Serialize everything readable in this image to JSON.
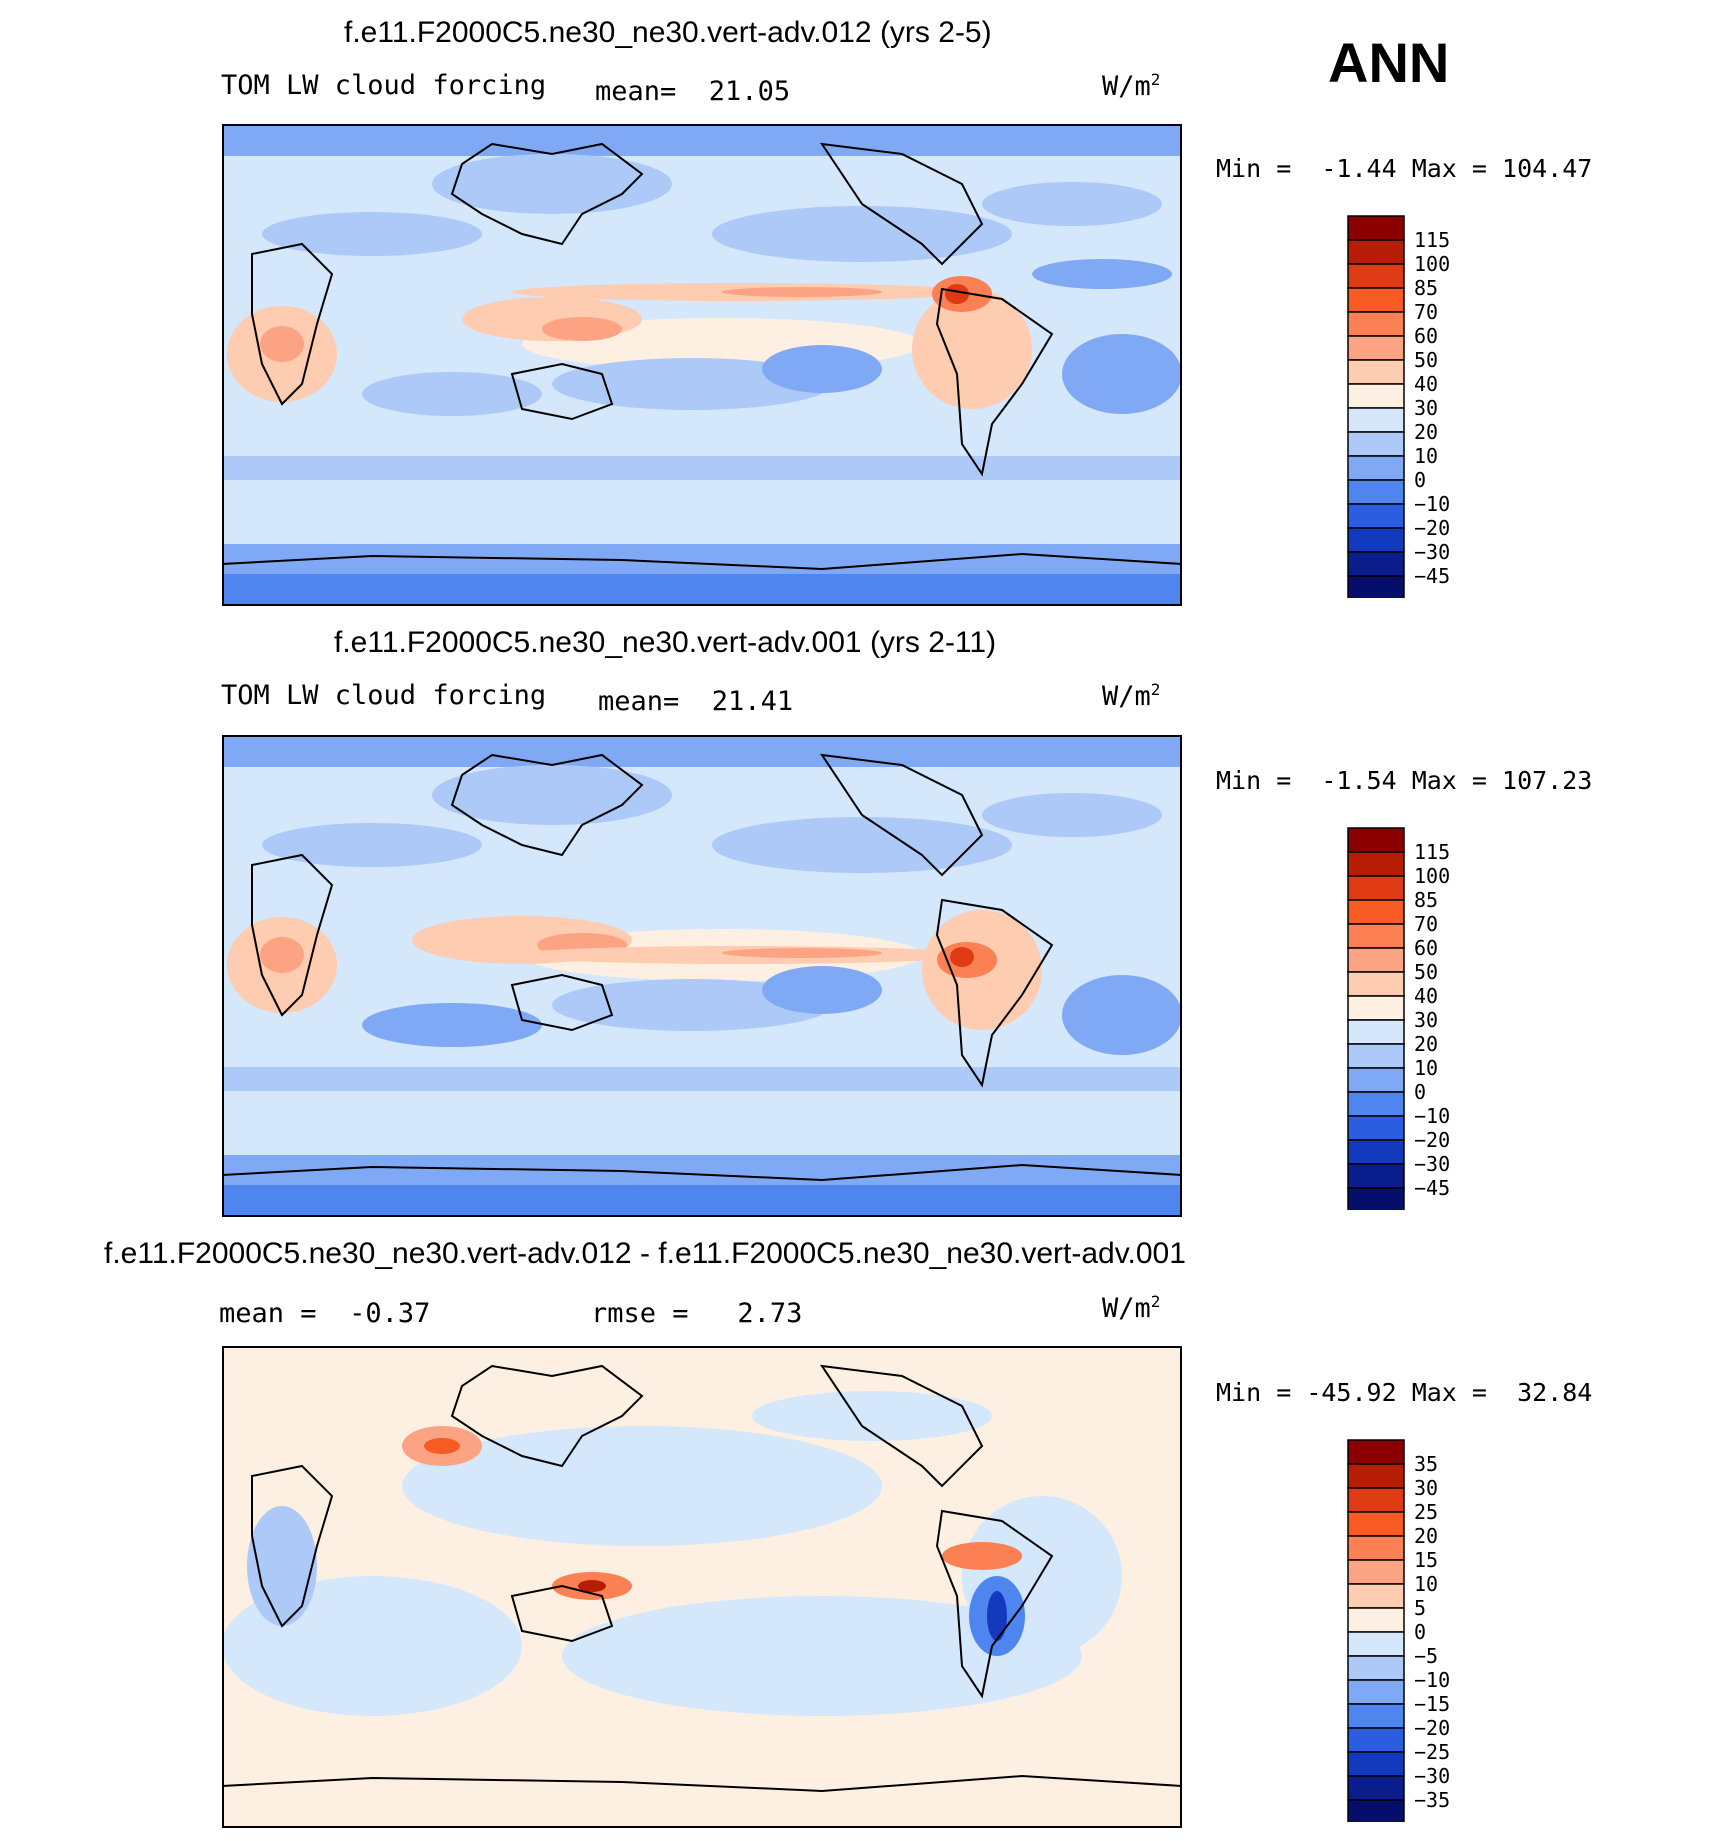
{
  "season": "ANN",
  "chart_data": [
    {
      "type": "heatmap",
      "title": "f.e11.F2000C5.ne30_ne30.vert-adv.012 (yrs 2-5)",
      "variable": "TOM LW cloud forcing",
      "stat_label": "mean=",
      "stat_value": "21.05",
      "units_base": "W/m",
      "units_exp": "2",
      "min_label": "Min =",
      "min": "-1.44",
      "max_label": "Max =",
      "max": "104.47",
      "colorbar_levels": [
        "115",
        "100",
        "85",
        "70",
        "60",
        "50",
        "40",
        "30",
        "20",
        "10",
        "0",
        "-10",
        "-20",
        "-30",
        "-45"
      ],
      "colorbar_colors": [
        "#8b0000",
        "#b71c04",
        "#de3b14",
        "#f75a22",
        "#fb8054",
        "#fca384",
        "#fdccb1",
        "#fdf0e2",
        "#d5e7fb",
        "#acc9f7",
        "#7fa9f4",
        "#4f85ef",
        "#2a5ddf",
        "#1339bd",
        "#0a1d8c",
        "#050f6b"
      ]
    },
    {
      "type": "heatmap",
      "title": "f.e11.F2000C5.ne30_ne30.vert-adv.001 (yrs 2-11)",
      "variable": "TOM LW cloud forcing",
      "stat_label": "mean=",
      "stat_value": "21.41",
      "units_base": "W/m",
      "units_exp": "2",
      "min_label": "Min =",
      "min": "-1.54",
      "max_label": "Max =",
      "max": "107.23",
      "colorbar_levels": [
        "115",
        "100",
        "85",
        "70",
        "60",
        "50",
        "40",
        "30",
        "20",
        "10",
        "0",
        "-10",
        "-20",
        "-30",
        "-45"
      ],
      "colorbar_colors": [
        "#8b0000",
        "#b71c04",
        "#de3b14",
        "#f75a22",
        "#fb8054",
        "#fca384",
        "#fdccb1",
        "#fdf0e2",
        "#d5e7fb",
        "#acc9f7",
        "#7fa9f4",
        "#4f85ef",
        "#2a5ddf",
        "#1339bd",
        "#0a1d8c",
        "#050f6b"
      ]
    },
    {
      "type": "heatmap",
      "title": "f.e11.F2000C5.ne30_ne30.vert-adv.012 - f.e11.F2000C5.ne30_ne30.vert-adv.001",
      "variable": "",
      "stat_label": "mean =",
      "stat_value": "-0.37",
      "rmse_label": "rmse =",
      "rmse_value": "2.73",
      "units_base": "W/m",
      "units_exp": "2",
      "min_label": "Min =",
      "min": "-45.92",
      "max_label": "Max =",
      "max": "32.84",
      "colorbar_levels": [
        "35",
        "30",
        "25",
        "20",
        "15",
        "10",
        "5",
        "0",
        "-5",
        "-10",
        "-15",
        "-20",
        "-25",
        "-30",
        "-35"
      ],
      "colorbar_colors": [
        "#8b0000",
        "#b71c04",
        "#de3b14",
        "#f75a22",
        "#fb8054",
        "#fca384",
        "#fdccb1",
        "#fdf0e2",
        "#d5e7fb",
        "#acc9f7",
        "#7fa9f4",
        "#4f85ef",
        "#2a5ddf",
        "#1339bd",
        "#0a1d8c",
        "#050f6b"
      ]
    }
  ]
}
